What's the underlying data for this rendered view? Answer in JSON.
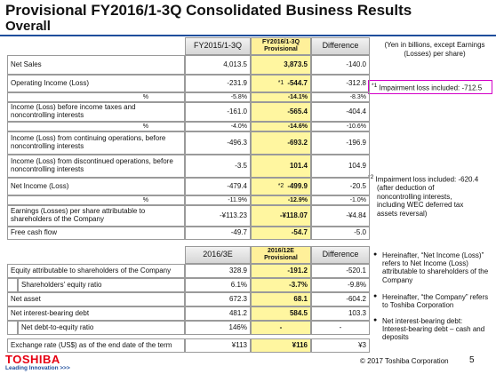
{
  "title": "Provisional FY2016/1-3Q Consolidated Business Results",
  "subtitle": "Overall",
  "unit_note": "(Yen in billions, except Earnings (Losses) per share)",
  "table1": {
    "header": [
      "FY2015/1-3Q",
      [
        "FY2016/1-3Q",
        "Provisional"
      ],
      "Difference"
    ],
    "rows": [
      {
        "label": "Net Sales",
        "values": [
          "4,013.5",
          "3,873.5",
          "-140.0"
        ]
      },
      {
        "label": "Operating Income (Loss)",
        "marker": "*1",
        "values": [
          "-231.9",
          "-544.7",
          "-312.8"
        ],
        "percent_label": "%",
        "percent": [
          "-5.8%",
          "-14.1%",
          "-8.3%"
        ]
      },
      {
        "label": "Income (Loss) before income taxes and noncontrolling interests",
        "values": [
          "-161.0",
          "-565.4",
          "-404.4"
        ],
        "percent_label": "%",
        "percent": [
          "-4.0%",
          "-14.6%",
          "-10.6%"
        ]
      },
      {
        "label": "Income (Loss) from continuing operations, before noncontrolling interests",
        "values": [
          "-496.3",
          "-693.2",
          "-196.9"
        ]
      },
      {
        "label": "Income (Loss) from discontinued operations, before noncontrolling interests",
        "values": [
          "-3.5",
          "101.4",
          "104.9"
        ]
      },
      {
        "label": "Net Income (Loss)",
        "marker": "*2",
        "values": [
          "-479.4",
          "-499.9",
          "-20.5"
        ],
        "percent_label": "%",
        "percent": [
          "-11.9%",
          "-12.9%",
          "-1.0%"
        ]
      },
      {
        "label": "Earnings (Losses) per share attributable to shareholders of the Company",
        "values": [
          "-¥113.23",
          "-¥118.07",
          "-¥4.84"
        ]
      },
      {
        "label": "Free cash flow",
        "values": [
          "-49.7",
          "-54.7",
          "-5.0"
        ]
      }
    ]
  },
  "table2": {
    "header": [
      "2016/3E",
      [
        "2016/12E",
        "Provisional"
      ],
      "Difference"
    ],
    "rows": [
      {
        "label": "Equity attributable to shareholders of the Company",
        "values": [
          "328.9",
          "-191.2",
          "-520.1"
        ]
      },
      {
        "label": "Shareholders' equity ratio",
        "values": [
          "6.1%",
          "-3.7%",
          "-9.8%"
        ]
      },
      {
        "label": "Net asset",
        "values": [
          "672.3",
          "68.1",
          "-604.2"
        ]
      },
      {
        "label": "Net interest-bearing debt",
        "values": [
          "481.2",
          "584.5",
          "103.3"
        ]
      },
      {
        "label": "Net debt-to-equity ratio",
        "values": [
          "146%",
          "-",
          "-"
        ]
      },
      {
        "label": "Exchange rate (US$) as of the end date of the term",
        "values": [
          "¥113",
          "¥116",
          "¥3"
        ]
      }
    ]
  },
  "notes": {
    "note1": {
      "marker": "*1",
      "text": "Impairment loss included: -712.5"
    },
    "note2": {
      "marker": "*2",
      "text": "Impairment loss included: -620.4",
      "detail": "(after deduction of noncontrolling interests, including WEC deferred tax assets reversal)"
    }
  },
  "bullets": [
    "Hereinafter, “Net Income (Loss)” refers to Net Income (Loss) attributable to shareholders of the Company",
    "Hereinafter, “the Company” refers to Toshiba Corporation",
    "Net interest-bearing debt: Interest-bearing debt – cash and deposits"
  ],
  "footer": {
    "logo": "TOSHIBA",
    "tagline": "Leading Innovation >>>",
    "copyright": "© 2017 Toshiba Corporation",
    "page": "5"
  }
}
